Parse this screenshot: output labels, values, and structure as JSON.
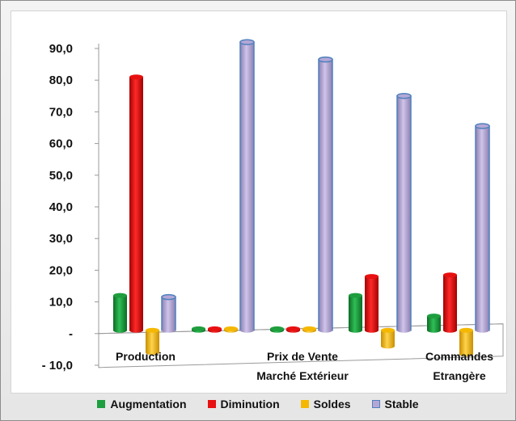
{
  "chart_data": {
    "type": "bar",
    "style": "3d-cylinder",
    "categories": [
      "Production",
      "Prix de Vente\nMarché Extérieur",
      "Commandes\nEtrangère"
    ],
    "groups": [
      {
        "labels": [
          "Production"
        ],
        "values": {
          "Augmentation": 11.0,
          "Diminution": 80.0,
          "Soldes": -7.0,
          "Stable": 10.5
        }
      },
      {
        "labels": [],
        "values": {
          "Augmentation": 0.5,
          "Diminution": 0.5,
          "Soldes": 0.5,
          "Stable": 91.0
        }
      },
      {
        "labels": [
          "Prix de Vente",
          "Marché Extérieur"
        ],
        "values": {
          "Augmentation": 0.5,
          "Diminution": 0.5,
          "Soldes": 0.5,
          "Stable": 85.5
        }
      },
      {
        "labels": [],
        "values": {
          "Augmentation": 11.0,
          "Diminution": 17.0,
          "Soldes": -5.0,
          "Stable": 74.0
        }
      },
      {
        "labels": [
          "Commandes",
          "Etrangère"
        ],
        "values": {
          "Augmentation": 4.5,
          "Diminution": 17.5,
          "Soldes": -7.5,
          "Stable": 64.5
        }
      }
    ],
    "series": [
      {
        "name": "Augmentation",
        "color": "#1e9e3e"
      },
      {
        "name": "Diminution",
        "color": "#e81010"
      },
      {
        "name": "Soldes",
        "color": "#f5b800"
      },
      {
        "name": "Stable",
        "color": "#b4a7d6",
        "border": "#4f81bd"
      }
    ],
    "yticks": [
      "90,0",
      "80,0",
      "70,0",
      "60,0",
      "50,0",
      "40,0",
      "30,0",
      "20,0",
      "10,0",
      "-",
      "- 10,0"
    ],
    "ylim": [
      -10,
      90
    ],
    "legend_position": "bottom"
  }
}
